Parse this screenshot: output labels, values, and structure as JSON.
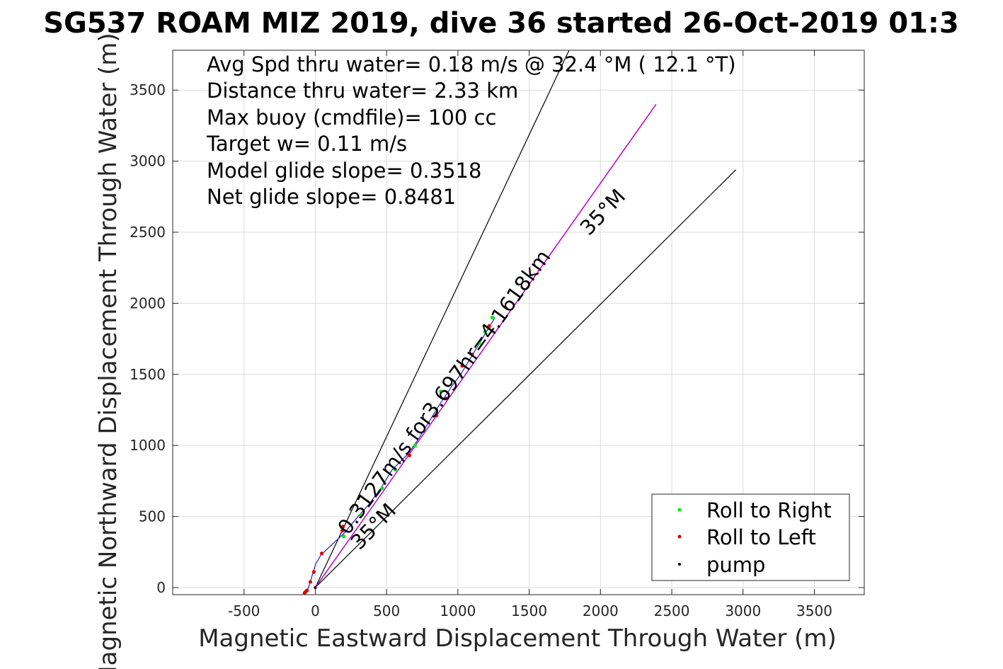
{
  "chart_data": {
    "type": "scatter",
    "title": "SG537 ROAM MIZ 2019, dive 36 started 26-Oct-2019 01:3",
    "xlabel": "Magnetic Eastward Displacement Through Water (m)",
    "ylabel": "Magnetic Northward Displacement Through Water (m)",
    "xlim": [
      -1000,
      3850
    ],
    "ylim": [
      -50,
      3780
    ],
    "xticks": [
      -500,
      0,
      500,
      1000,
      1500,
      2000,
      2500,
      3000,
      3500
    ],
    "yticks": [
      0,
      500,
      1000,
      1500,
      2000,
      2500,
      3000,
      3500
    ],
    "grid": true,
    "legend_position": "bottom-right",
    "annotations": [
      "Avg Spd thru water=  0.18 m/s @  32.4 °M ( 12.1 °T)",
      "Distance thru water=  2.33 km",
      "Max buoy (cmdfile)= 100 cc",
      "Target w= 0.11 m/s",
      "Model glide slope= 0.3518",
      "Net glide slope= 0.8481"
    ],
    "line_labels": {
      "speed": "0.3127m/s for3.697hr=4.1618km",
      "upper_cone": "35°M",
      "lower_cone": "35°M"
    },
    "cone_lines": [
      {
        "name": "upper",
        "x": [
          0,
          1780
        ],
        "y": [
          0,
          3780
        ]
      },
      {
        "name": "lower",
        "x": [
          0,
          2950
        ],
        "y": [
          0,
          2940
        ]
      }
    ],
    "track_line": {
      "color": "#c000c0",
      "x": [
        0,
        2390
      ],
      "y": [
        0,
        3400
      ]
    },
    "path": {
      "color": "#2020c0",
      "x": [
        -65,
        -55,
        -35,
        -15,
        5,
        40,
        200,
        300,
        380,
        460,
        540,
        600,
        650,
        720,
        800,
        860,
        900,
        960,
        1020,
        1080,
        1140,
        1200,
        1260
      ],
      "y": [
        -35,
        -20,
        40,
        110,
        170,
        230,
        380,
        500,
        590,
        700,
        830,
        890,
        940,
        1040,
        1170,
        1270,
        1330,
        1420,
        1500,
        1600,
        1700,
        1800,
        1900
      ]
    },
    "series": [
      {
        "name": "Roll to Right",
        "color": "#00ee00",
        "x": [
          200,
          320,
          470,
          560,
          700,
          850,
          880,
          1150,
          1190,
          1240
        ],
        "y": [
          360,
          510,
          700,
          830,
          1000,
          1250,
          1380,
          1720,
          1800,
          1900
        ]
      },
      {
        "name": "Roll to Left",
        "color": "#e00000",
        "x": [
          -75,
          -68,
          -58,
          -35,
          -10,
          45,
          190,
          195,
          660,
          850,
          915,
          1030,
          1100,
          1220
        ],
        "y": [
          -38,
          -30,
          -20,
          40,
          110,
          240,
          400,
          430,
          930,
          1210,
          1330,
          1560,
          1640,
          1840
        ]
      },
      {
        "name": "pump",
        "color": "#000000",
        "x": [
          0
        ],
        "y": [
          0
        ]
      }
    ]
  }
}
